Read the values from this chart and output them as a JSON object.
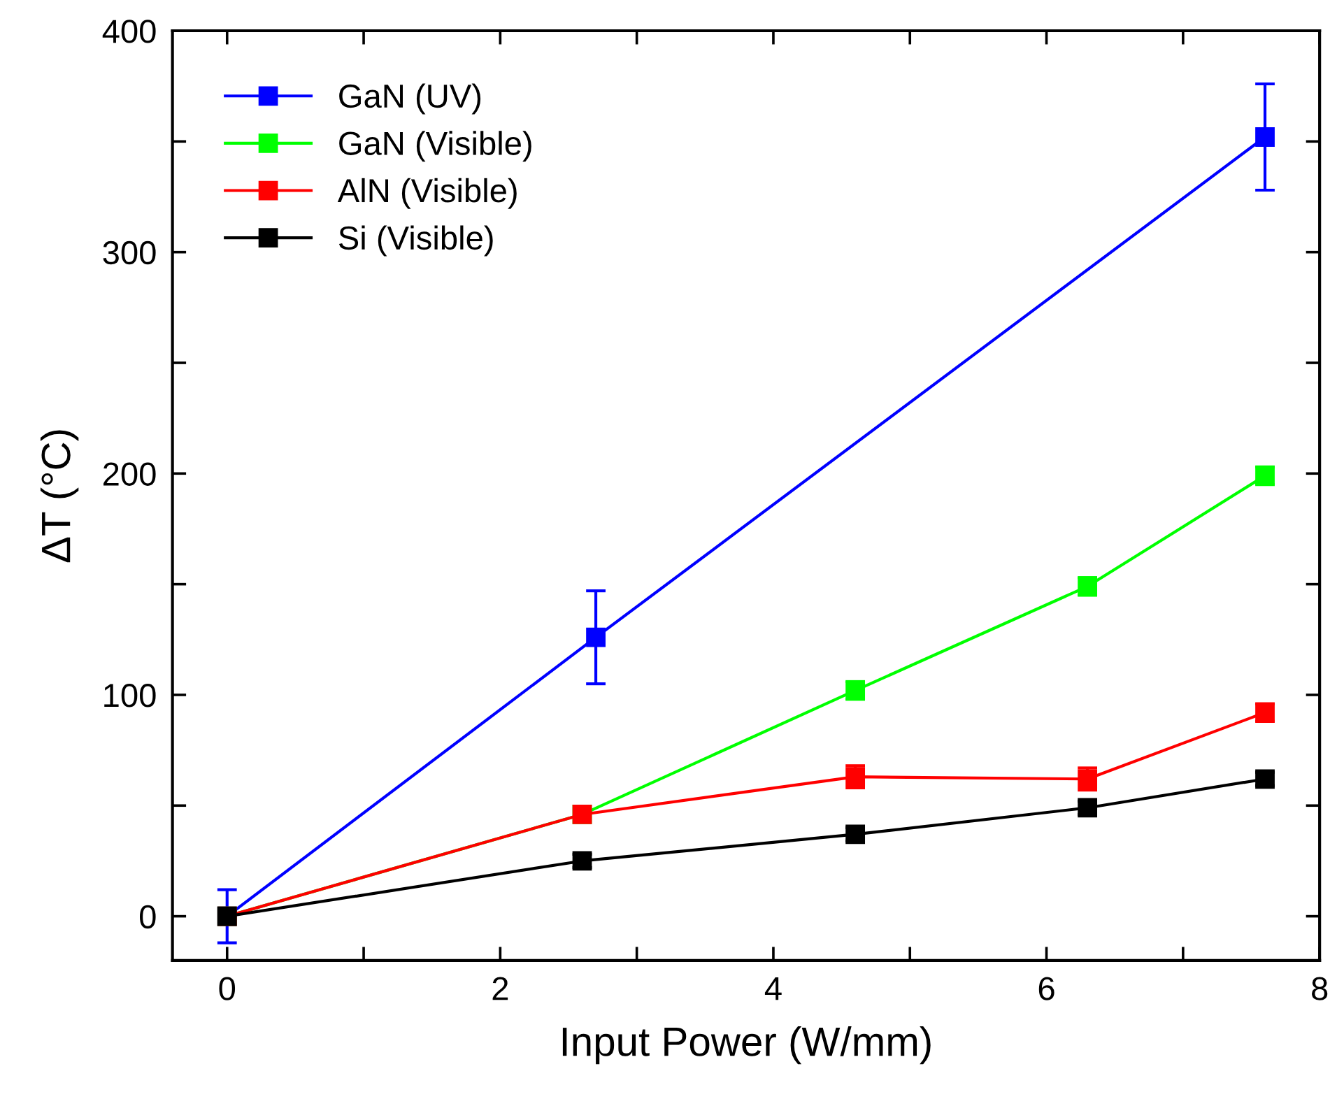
{
  "chart_data": {
    "type": "line",
    "xlabel": "Input Power (W/mm)",
    "ylabel": "ΔT (°C)",
    "xlim": [
      -0.4,
      8
    ],
    "ylim": [
      -20,
      400
    ],
    "xticks": [
      0,
      {
        "value": 1,
        "label": null
      },
      2,
      {
        "value": 3,
        "label": null
      },
      4,
      {
        "value": 5,
        "label": null
      },
      6,
      {
        "value": 7,
        "label": null
      },
      8
    ],
    "yticks": [
      0,
      {
        "value": 50,
        "label": null
      },
      100,
      {
        "value": 150,
        "label": null
      },
      200,
      {
        "value": 250,
        "label": null
      },
      300,
      {
        "value": 350,
        "label": null
      },
      400
    ],
    "grid": false,
    "legend": "top left",
    "marker": "square",
    "line_style": "solid",
    "series": [
      {
        "name": "GaN (UV)",
        "color": "#0000ff",
        "x": [
          0,
          2.7,
          7.6
        ],
        "values": [
          0,
          126,
          352
        ],
        "errors": [
          12,
          21,
          24
        ]
      },
      {
        "name": "GaN (Visible)",
        "color": "#00ff00",
        "x": [
          0,
          2.6,
          4.6,
          6.3,
          7.6
        ],
        "values": [
          0,
          46,
          102,
          149,
          199
        ],
        "errors": [
          null,
          null,
          4,
          4,
          4
        ]
      },
      {
        "name": "AlN (Visible)",
        "color": "#ff0000",
        "x": [
          0,
          2.6,
          4.6,
          6.3,
          7.6
        ],
        "values": [
          0,
          46,
          63,
          62,
          92
        ],
        "errors": [
          null,
          null,
          5,
          5,
          4
        ]
      },
      {
        "name": "Si (Visible)",
        "color": "#000000",
        "x": [
          0,
          2.6,
          4.6,
          6.3,
          7.6
        ],
        "values": [
          0,
          25,
          37,
          49,
          62
        ],
        "errors": [
          null,
          3,
          3,
          3,
          3
        ]
      }
    ]
  }
}
